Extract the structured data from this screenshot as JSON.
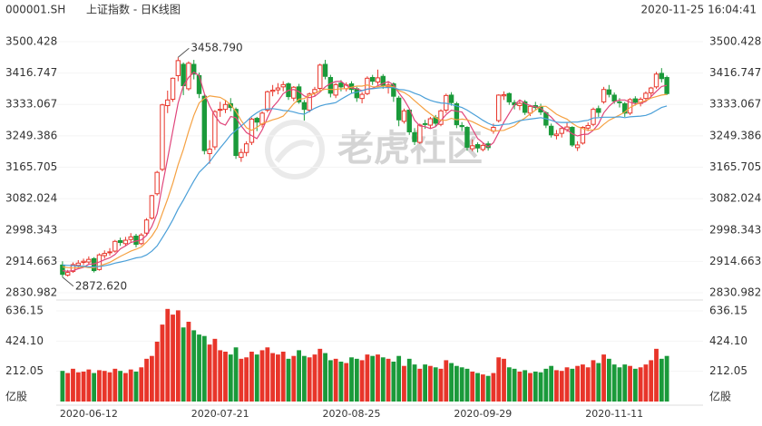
{
  "chart_data": {
    "type": "candlestick",
    "symbol": "000001.SH",
    "title": "上证指数 - 日K线图",
    "timestamp": "2020-11-25 16:04:41",
    "watermark": "老虎社区",
    "volume_unit": "亿股",
    "up_color": "#e8352a",
    "down_color": "#1a9a3a",
    "grid": true,
    "categories": [
      null,
      null,
      null,
      null,
      null,
      "2020-06-12",
      null,
      null,
      null,
      null,
      null,
      null,
      null,
      null,
      null,
      null,
      null,
      null,
      null,
      null,
      null,
      null,
      null,
      null,
      null,
      null,
      null,
      null,
      null,
      null,
      "2020-07-21",
      null,
      null,
      null,
      null,
      null,
      null,
      null,
      null,
      null,
      null,
      null,
      null,
      null,
      null,
      null,
      null,
      null,
      null,
      null,
      null,
      null,
      null,
      null,
      null,
      "2020-08-25",
      null,
      null,
      null,
      null,
      null,
      null,
      null,
      null,
      null,
      null,
      null,
      null,
      null,
      null,
      null,
      null,
      null,
      null,
      null,
      null,
      null,
      null,
      null,
      null,
      "2020-09-29",
      null,
      null,
      null,
      null,
      null,
      null,
      null,
      null,
      null,
      null,
      null,
      null,
      null,
      null,
      null,
      null,
      null,
      null,
      null,
      null,
      null,
      null,
      null,
      null,
      "2020-11-11",
      null,
      null,
      null,
      null,
      null,
      null,
      null,
      null,
      null,
      null
    ],
    "open": [
      2905,
      2878,
      2888,
      2904,
      2912,
      2913,
      2922,
      2893,
      2930,
      2938,
      2942,
      2970,
      2962,
      2973,
      2982,
      2962,
      2990,
      3030,
      3095,
      3160,
      3330,
      3347,
      3410,
      3440,
      3375,
      3440,
      3410,
      3355,
      3202,
      3220,
      3318,
      3320,
      3335,
      3320,
      3192,
      3205,
      3232,
      3296,
      3280,
      3318,
      3368,
      3372,
      3380,
      3388,
      3350,
      3380,
      3338,
      3318,
      3364,
      3376,
      3440,
      3405,
      3358,
      3390,
      3375,
      3388,
      3375,
      3349,
      3362,
      3405,
      3393,
      3408,
      3380,
      3388,
      3350,
      3288,
      3318,
      3258,
      3232,
      3282,
      3278,
      3298,
      3280,
      3318,
      3358,
      3335,
      3277,
      3272,
      3215,
      3226,
      3213,
      3228,
      3262,
      3290,
      3356,
      3362,
      3338,
      3330,
      3340,
      3310,
      3330,
      3327,
      3311,
      3275,
      3250,
      3256,
      3266,
      3272,
      3218,
      3230,
      3270,
      3280,
      3322,
      3340,
      3372,
      3358,
      3340,
      3335,
      3310,
      3348,
      3336,
      3349,
      3364,
      3380,
      3416,
      3405
    ],
    "high": [
      2915,
      2892,
      2912,
      2918,
      2922,
      2928,
      2926,
      2936,
      2944,
      2950,
      2972,
      2978,
      2980,
      2990,
      2988,
      2990,
      3030,
      3092,
      3156,
      3335,
      3370,
      3405,
      3458.79,
      3445,
      3448,
      3452,
      3418,
      3360,
      3238,
      3318,
      3340,
      3345,
      3350,
      3325,
      3215,
      3235,
      3298,
      3300,
      3315,
      3370,
      3385,
      3390,
      3395,
      3392,
      3382,
      3388,
      3345,
      3365,
      3380,
      3442,
      3452,
      3412,
      3390,
      3398,
      3392,
      3395,
      3380,
      3366,
      3408,
      3412,
      3426,
      3414,
      3395,
      3392,
      3356,
      3322,
      3320,
      3270,
      3282,
      3292,
      3300,
      3305,
      3320,
      3362,
      3366,
      3340,
      3286,
      3275,
      3240,
      3232,
      3230,
      3235,
      3282,
      3360,
      3368,
      3365,
      3345,
      3342,
      3345,
      3332,
      3340,
      3335,
      3315,
      3282,
      3265,
      3275,
      3285,
      3275,
      3235,
      3275,
      3285,
      3325,
      3330,
      3380,
      3385,
      3365,
      3350,
      3340,
      3350,
      3355,
      3352,
      3368,
      3380,
      3420,
      3430,
      3410
    ],
    "low": [
      2872.62,
      2874,
      2884,
      2898,
      2905,
      2906,
      2885,
      2890,
      2922,
      2930,
      2938,
      2956,
      2955,
      2966,
      2952,
      2958,
      2985,
      3026,
      3090,
      3155,
      3310,
      3340,
      3395,
      3358,
      3370,
      3400,
      3350,
      3200,
      3175,
      3212,
      3300,
      3310,
      3315,
      3188,
      3180,
      3195,
      3225,
      3262,
      3272,
      3312,
      3355,
      3360,
      3368,
      3345,
      3342,
      3335,
      3290,
      3312,
      3355,
      3370,
      3400,
      3352,
      3350,
      3368,
      3368,
      3362,
      3340,
      3336,
      3358,
      3385,
      3385,
      3375,
      3362,
      3340,
      3275,
      3282,
      3252,
      3225,
      3228,
      3268,
      3270,
      3275,
      3275,
      3310,
      3330,
      3270,
      3262,
      3210,
      3208,
      3205,
      3208,
      3210,
      3255,
      3285,
      3345,
      3332,
      3320,
      3318,
      3305,
      3302,
      3318,
      3305,
      3270,
      3245,
      3240,
      3245,
      3260,
      3220,
      3209,
      3226,
      3262,
      3275,
      3300,
      3335,
      3352,
      3335,
      3325,
      3300,
      3305,
      3330,
      3328,
      3342,
      3355,
      3375,
      3392,
      3358
    ],
    "close": [
      2880,
      2885,
      2906,
      2910,
      2915,
      2920,
      2890,
      2932,
      2936,
      2940,
      2968,
      2965,
      2971,
      2980,
      2960,
      2985,
      3025,
      3090,
      3152,
      3332,
      3345,
      3403,
      3450,
      3383,
      3443,
      3414,
      3362,
      3210,
      3214,
      3314,
      3320,
      3333,
      3325,
      3197,
      3205,
      3228,
      3294,
      3286,
      3310,
      3367,
      3371,
      3377,
      3386,
      3354,
      3379,
      3340,
      3320,
      3361,
      3373,
      3438,
      3408,
      3363,
      3386,
      3380,
      3385,
      3373,
      3351,
      3360,
      3403,
      3395,
      3404,
      3384,
      3385,
      3355,
      3292,
      3316,
      3260,
      3234,
      3278,
      3280,
      3295,
      3283,
      3316,
      3357,
      3338,
      3279,
      3274,
      3219,
      3223,
      3217,
      3224,
      3218,
      3272,
      3358,
      3359,
      3340,
      3332,
      3336,
      3312,
      3328,
      3325,
      3313,
      3278,
      3252,
      3254,
      3269,
      3273,
      3225,
      3225,
      3272,
      3277,
      3320,
      3312,
      3373,
      3360,
      3342,
      3338,
      3310,
      3346,
      3339,
      3347,
      3363,
      3377,
      3414,
      3402,
      3362
    ],
    "volume": [
      215,
      200,
      230,
      205,
      210,
      225,
      200,
      220,
      215,
      205,
      230,
      215,
      200,
      225,
      210,
      240,
      300,
      320,
      420,
      540,
      650,
      610,
      640,
      520,
      560,
      500,
      470,
      460,
      400,
      440,
      360,
      350,
      330,
      380,
      300,
      310,
      350,
      330,
      360,
      380,
      340,
      330,
      350,
      300,
      320,
      360,
      320,
      310,
      330,
      370,
      340,
      290,
      300,
      280,
      270,
      310,
      300,
      290,
      330,
      320,
      330,
      310,
      300,
      280,
      320,
      250,
      300,
      260,
      230,
      260,
      250,
      240,
      230,
      290,
      270,
      250,
      240,
      230,
      210,
      200,
      190,
      180,
      200,
      310,
      300,
      240,
      230,
      210,
      220,
      200,
      210,
      205,
      230,
      250,
      220,
      215,
      240,
      230,
      250,
      260,
      240,
      290,
      270,
      330,
      300,
      260,
      240,
      260,
      250,
      230,
      240,
      260,
      290,
      370,
      300,
      320
    ],
    "ma_lines": [
      {
        "color": "#e0457b",
        "values": [
          2890,
          2888,
          2890,
          2895,
          2899,
          2907,
          2908,
          2913,
          2919,
          2924,
          2933,
          2948,
          2956,
          2965,
          2969,
          2972,
          2984,
          3008,
          3042,
          3117,
          3189,
          3264,
          3336,
          3383,
          3405,
          3419,
          3410,
          3362,
          3329,
          3303,
          3284,
          3278,
          3301,
          3298,
          3276,
          3258,
          3250,
          3242,
          3265,
          3297,
          3326,
          3342,
          3362,
          3371,
          3373,
          3367,
          3356,
          3351,
          3355,
          3366,
          3380,
          3389,
          3394,
          3395,
          3384,
          3377,
          3375,
          3370,
          3374,
          3376,
          3383,
          3389,
          3394,
          3385,
          3364,
          3346,
          3322,
          3291,
          3276,
          3274,
          3269,
          3274,
          3290,
          3306,
          3318,
          3315,
          3313,
          3293,
          3267,
          3242,
          3231,
          3220,
          3231,
          3258,
          3286,
          3309,
          3332,
          3345,
          3336,
          3330,
          3327,
          3323,
          3311,
          3299,
          3284,
          3273,
          3265,
          3255,
          3249,
          3253,
          3254,
          3264,
          3281,
          3311,
          3328,
          3341,
          3345,
          3345,
          3339,
          3335,
          3336,
          3341,
          3354,
          3368,
          3381,
          3384
        ]
      },
      {
        "color": "#f5a142",
        "values": [
          2900,
          2898,
          2897,
          2898,
          2900,
          2898,
          2898,
          2902,
          2907,
          2912,
          2920,
          2928,
          2935,
          2942,
          2947,
          2953,
          2966,
          2982,
          3004,
          3043,
          3081,
          3124,
          3172,
          3213,
          3261,
          3304,
          3337,
          3349,
          3356,
          3354,
          3352,
          3344,
          3332,
          3314,
          3290,
          3271,
          3264,
          3272,
          3282,
          3287,
          3292,
          3296,
          3302,
          3318,
          3335,
          3347,
          3349,
          3357,
          3363,
          3370,
          3374,
          3373,
          3373,
          3375,
          3375,
          3379,
          3382,
          3382,
          3385,
          3380,
          3380,
          3382,
          3382,
          3380,
          3370,
          3365,
          3356,
          3343,
          3331,
          3319,
          3308,
          3298,
          3291,
          3291,
          3296,
          3292,
          3294,
          3292,
          3287,
          3280,
          3273,
          3267,
          3262,
          3263,
          3264,
          3270,
          3276,
          3288,
          3297,
          3308,
          3318,
          3328,
          3328,
          3318,
          3307,
          3300,
          3294,
          3283,
          3274,
          3269,
          3264,
          3265,
          3268,
          3280,
          3291,
          3298,
          3305,
          3313,
          3325,
          3332,
          3339,
          3343,
          3350,
          3354,
          3358,
          3360
        ]
      },
      {
        "color": "#4a9fd8",
        "values": [
          2905,
          2904,
          2903,
          2902,
          2902,
          2900,
          2900,
          2901,
          2903,
          2906,
          2910,
          2913,
          2916,
          2920,
          2924,
          2926,
          2932,
          2942,
          2956,
          2978,
          3001,
          3026,
          3054,
          3078,
          3104,
          3129,
          3152,
          3166,
          3180,
          3199,
          3217,
          3234,
          3252,
          3264,
          3276,
          3288,
          3301,
          3311,
          3319,
          3321,
          3322,
          3320,
          3317,
          3316,
          3313,
          3309,
          3307,
          3315,
          3323,
          3329,
          3333,
          3335,
          3338,
          3347,
          3355,
          3363,
          3366,
          3370,
          3374,
          3375,
          3377,
          3378,
          3378,
          3378,
          3373,
          3372,
          3369,
          3363,
          3358,
          3350,
          3344,
          3340,
          3337,
          3336,
          3333,
          3329,
          3325,
          3318,
          3309,
          3300,
          3291,
          3283,
          3277,
          3277,
          3280,
          3281,
          3285,
          3290,
          3292,
          3294,
          3296,
          3298,
          3295,
          3291,
          3286,
          3285,
          3285,
          3286,
          3286,
          3289,
          3291,
          3297,
          3298,
          3299,
          3299,
          3299,
          3300,
          3298,
          3300,
          3301,
          3302,
          3304,
          3309,
          3317,
          3325,
          3329
        ]
      }
    ],
    "ylim": [
      2830.982,
      3500.428
    ],
    "yticks": [
      2830.982,
      2914.663,
      2998.343,
      3082.024,
      3165.705,
      3249.386,
      3333.067,
      3416.747,
      3500.428
    ],
    "volume_ylim": [
      0,
      636.15
    ],
    "volume_yticks": [
      212.05,
      {
        "value": 424.1,
        "label": "424.10"
      },
      636.15
    ],
    "annotations": [
      {
        "index": 22,
        "value": 3458.79,
        "label": "3458.790"
      },
      {
        "index": 0,
        "value": 2872.62,
        "label": "2872.620"
      }
    ]
  }
}
